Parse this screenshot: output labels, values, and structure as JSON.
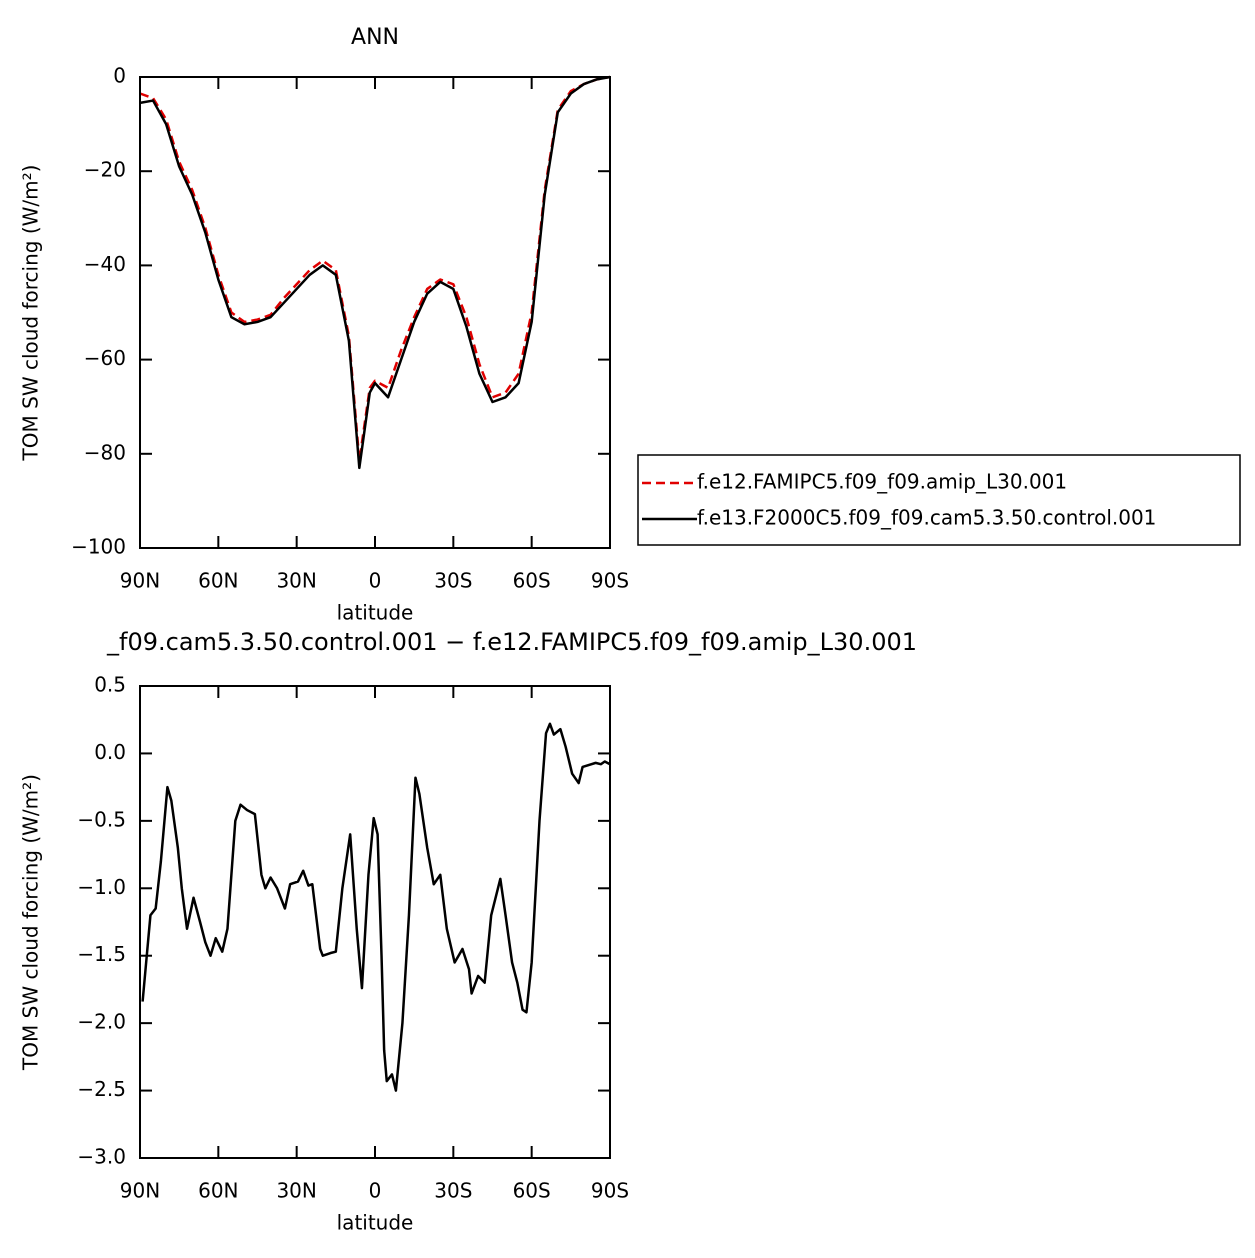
{
  "chart_data": [
    {
      "type": "line",
      "title": "ANN",
      "x_label": "latitude",
      "y_label": "TOM SW cloud forcing (W/m²)",
      "x": [
        90,
        85,
        80,
        75,
        70,
        65,
        60,
        55,
        50,
        45,
        40,
        35,
        30,
        25,
        20,
        15,
        10,
        6,
        2,
        0,
        -5,
        -10,
        -15,
        -20,
        -25,
        -30,
        -35,
        -40,
        -45,
        -50,
        -55,
        -60,
        -65,
        -70,
        -75,
        -80,
        -85,
        -90
      ],
      "series": [
        {
          "name": "f.e12.FAMIPC5.f09_f09.amip_L30.001",
          "color": "#e00000",
          "dash": true,
          "values": [
            -3.5,
            -4.5,
            -9,
            -18,
            -24,
            -32,
            -42,
            -50,
            -52,
            -51.5,
            -50.5,
            -47,
            -44,
            -41,
            -39,
            -41,
            -55,
            -81.5,
            -66,
            -64.5,
            -66,
            -58,
            -51,
            -45,
            -43,
            -44,
            -51,
            -61,
            -68,
            -67,
            -63,
            -50,
            -24,
            -7,
            -3,
            -1.5,
            -0.5,
            0
          ]
        },
        {
          "name": "f.e13.F2000C5.f09_f09.cam5.3.50.control.001",
          "color": "#000000",
          "dash": false,
          "values": [
            -5.5,
            -5,
            -10,
            -19,
            -25,
            -33,
            -43,
            -51,
            -52.5,
            -52,
            -51,
            -48,
            -45,
            -42,
            -40,
            -42,
            -56,
            -83,
            -67,
            -65,
            -68,
            -60,
            -52,
            -46,
            -43.5,
            -45,
            -53,
            -63,
            -69,
            -68,
            -65,
            -52,
            -25,
            -7.5,
            -3.5,
            -1.5,
            -0.5,
            0
          ]
        }
      ],
      "xlim": [
        90,
        -90
      ],
      "xticks": [
        {
          "value": 90,
          "label": "90N"
        },
        {
          "value": 60,
          "label": "60N"
        },
        {
          "value": 30,
          "label": "30N"
        },
        0,
        {
          "value": -30,
          "label": "30S"
        },
        {
          "value": -60,
          "label": "60S"
        },
        {
          "value": -90,
          "label": "90S"
        }
      ],
      "ylim": [
        -100,
        0
      ],
      "yticks": [
        {
          "value": -100,
          "label": "−100"
        },
        {
          "value": -80,
          "label": "−80"
        },
        {
          "value": -60,
          "label": "−60"
        },
        {
          "value": -40,
          "label": "−40"
        },
        {
          "value": -20,
          "label": "−20"
        },
        0
      ],
      "legend": "right"
    },
    {
      "type": "line",
      "title": "_f09.cam5.3.50.control.001  −  f.e12.FAMIPC5.f09_f09.amip_L30.001",
      "x_label": "latitude",
      "y_label": "TOM SW cloud forcing (W/m²)",
      "x": [
        89,
        86,
        84,
        82,
        79.5,
        78,
        75.5,
        74,
        72,
        69.5,
        67,
        65,
        63,
        61,
        58.5,
        56.5,
        53.5,
        51.5,
        49,
        46,
        43.5,
        42,
        40,
        37.5,
        34.5,
        32.5,
        29.5,
        27.5,
        25.5,
        24,
        21,
        20,
        17,
        15,
        12.5,
        9.5,
        7,
        5,
        2.5,
        0.5,
        -1,
        -2.5,
        -3.5,
        -4.5,
        -6.5,
        -8,
        -10.5,
        -13,
        -15.5,
        -17,
        -20,
        -22.5,
        -25,
        -27.5,
        -30.5,
        -33.5,
        -36,
        -37,
        -39.5,
        -42,
        -44.5,
        -48,
        -50,
        -52.5,
        -54.5,
        -56.5,
        -58,
        -60,
        -63,
        -65.5,
        -67,
        -68.5,
        -71,
        -73,
        -75.5,
        -78,
        -79.5,
        -84.5,
        -86.5,
        -88,
        -90
      ],
      "series": [
        {
          "color": "#000000",
          "dash": false,
          "values": [
            -1.84,
            -1.2,
            -1.15,
            -0.8,
            -0.25,
            -0.35,
            -0.7,
            -1.0,
            -1.3,
            -1.07,
            -1.25,
            -1.4,
            -1.5,
            -1.37,
            -1.47,
            -1.3,
            -0.5,
            -0.38,
            -0.42,
            -0.45,
            -0.9,
            -1.0,
            -0.92,
            -1.0,
            -1.15,
            -0.97,
            -0.95,
            -0.87,
            -0.98,
            -0.97,
            -1.45,
            -1.5,
            -1.48,
            -1.47,
            -1.0,
            -0.6,
            -1.3,
            -1.74,
            -0.9,
            -0.48,
            -0.6,
            -1.5,
            -2.2,
            -2.43,
            -2.38,
            -2.5,
            -2.0,
            -1.2,
            -0.18,
            -0.3,
            -0.7,
            -0.97,
            -0.9,
            -1.3,
            -1.55,
            -1.45,
            -1.6,
            -1.78,
            -1.65,
            -1.7,
            -1.2,
            -0.93,
            -1.2,
            -1.55,
            -1.7,
            -1.9,
            -1.92,
            -1.55,
            -0.5,
            0.15,
            0.22,
            0.14,
            0.18,
            0.05,
            -0.15,
            -0.22,
            -0.1,
            -0.07,
            -0.08,
            -0.06,
            -0.08
          ]
        }
      ],
      "xlim": [
        90,
        -90
      ],
      "xticks": [
        {
          "value": 90,
          "label": "90N"
        },
        {
          "value": 60,
          "label": "60N"
        },
        {
          "value": 30,
          "label": "30N"
        },
        0,
        {
          "value": -30,
          "label": "30S"
        },
        {
          "value": -60,
          "label": "60S"
        },
        {
          "value": -90,
          "label": "90S"
        }
      ],
      "ylim": [
        -3.0,
        0.5
      ],
      "yticks": [
        {
          "value": -3.0,
          "label": "−3.0"
        },
        {
          "value": -2.5,
          "label": "−2.5"
        },
        {
          "value": -2.0,
          "label": "−2.0"
        },
        {
          "value": -1.5,
          "label": "−1.5"
        },
        {
          "value": -1.0,
          "label": "−1.0"
        },
        {
          "value": -0.5,
          "label": "−0.5"
        },
        {
          "value": 0,
          "label": "0.0"
        },
        0.5
      ]
    }
  ]
}
